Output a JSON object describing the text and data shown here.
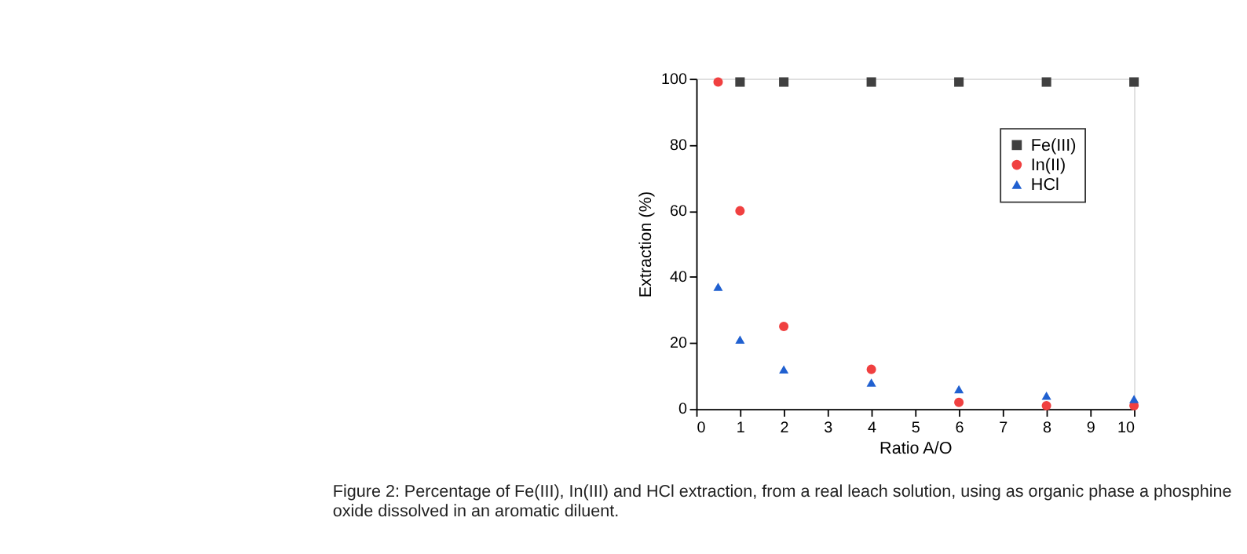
{
  "chart_data": {
    "type": "scatter",
    "xlabel": "Ratio A/O",
    "ylabel": "Extraction (%)",
    "xlim": [
      0,
      10
    ],
    "xticks": [
      0,
      1,
      2,
      3,
      4,
      5,
      6,
      7,
      8,
      9,
      10
    ],
    "ylim": [
      0,
      100
    ],
    "yticks": [
      0,
      20,
      40,
      60,
      80,
      100
    ],
    "grid": false,
    "legend": "top right",
    "series": [
      {
        "name": "Fe(III)",
        "color": "#404040",
        "marker": "square",
        "x": [
          1,
          2,
          4,
          6,
          8,
          10
        ],
        "values": [
          99,
          99,
          99,
          99,
          99,
          99
        ]
      },
      {
        "name": "In(II)",
        "color": "#f04040",
        "marker": "circle",
        "x": [
          0.5,
          1,
          2,
          4,
          6,
          8,
          10
        ],
        "values": [
          99,
          60,
          25,
          12,
          2,
          1,
          1
        ]
      },
      {
        "name": "HCl",
        "color": "#2060d0",
        "marker": "triangle",
        "x": [
          0.5,
          1,
          2,
          4,
          6,
          8,
          10
        ],
        "values": [
          37,
          21,
          12,
          8,
          6,
          4,
          3
        ]
      }
    ],
    "annotations": [
      "Figure 2: Percentage of Fe(III), In(III) and HCl extraction, from a real leach solution, using as organic phase a phosphine oxide dissolved in an aromatic diluent."
    ]
  }
}
